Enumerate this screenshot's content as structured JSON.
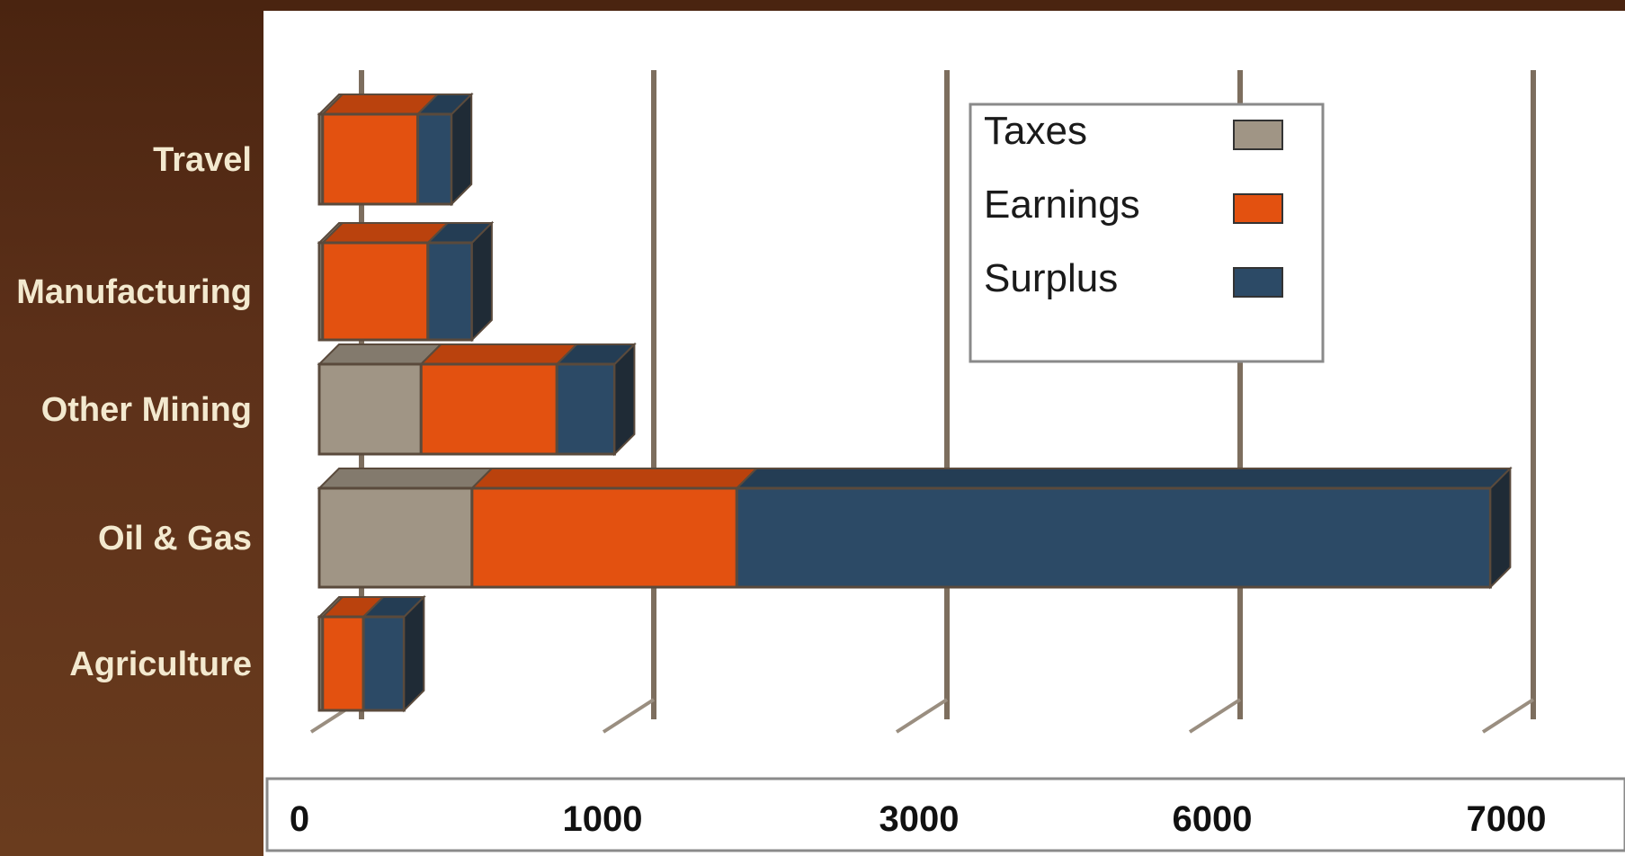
{
  "chart_data": {
    "type": "bar",
    "orientation": "horizontal",
    "stacked": true,
    "categories": [
      "Travel",
      "Manufacturing",
      "Other Mining",
      "Oil & Gas",
      "Agriculture"
    ],
    "series": [
      {
        "name": "Taxes",
        "values": [
          10,
          10,
          300,
          450,
          10
        ],
        "color": "#a09585"
      },
      {
        "name": "Earnings",
        "values": [
          280,
          310,
          400,
          780,
          120
        ],
        "color": "#e35110"
      },
      {
        "name": "Surplus",
        "values": [
          100,
          130,
          170,
          2220,
          120
        ],
        "color": "#2c4a66"
      }
    ],
    "x_ticks": [
      "0",
      "1000",
      "3000",
      "6000",
      "7000"
    ],
    "legend_position": "top-right",
    "grid": true
  }
}
